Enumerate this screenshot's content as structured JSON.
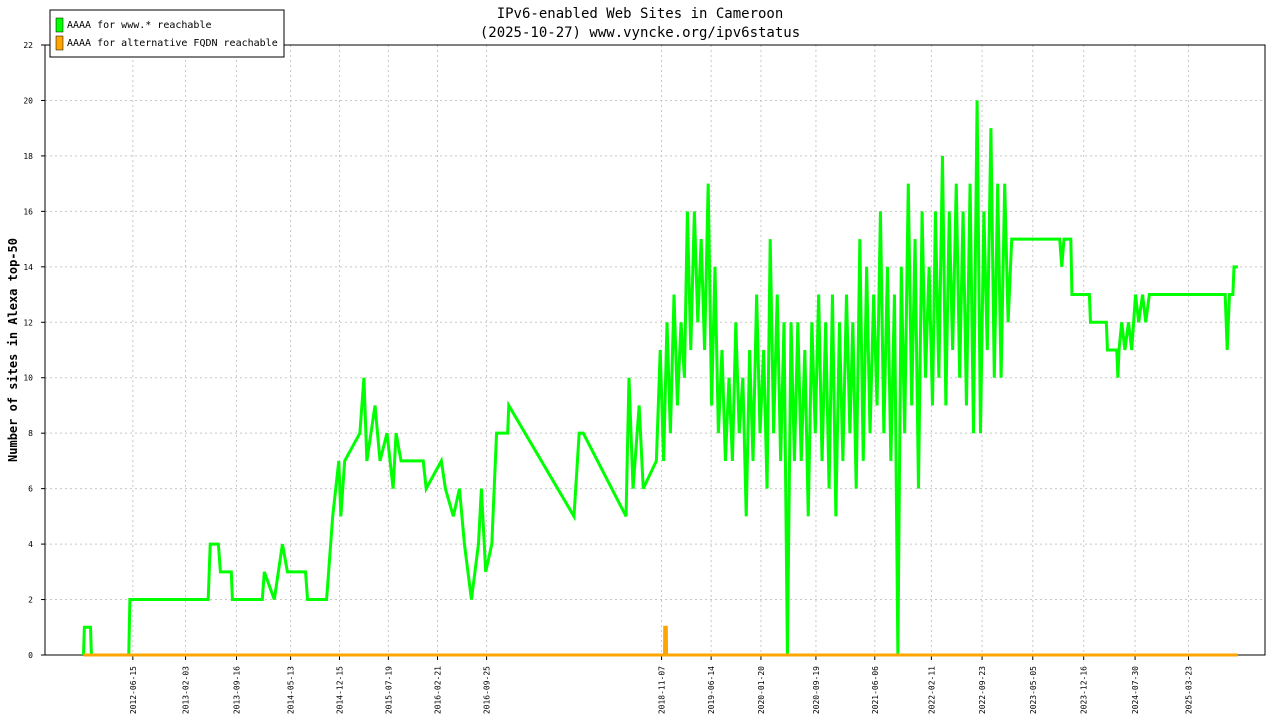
{
  "chart_data": {
    "type": "line",
    "title": "IPv6-enabled Web Sites in Cameroon",
    "subtitle": "(2025-10-27) www.vyncke.org/ipv6status",
    "ylabel": "Number of sites in Alexa top-50",
    "legend": "upper left",
    "grid": true,
    "xlim": [
      "2011-05-24",
      "2026-02-24"
    ],
    "ylim": [
      0,
      22
    ],
    "yticks": [
      0,
      2,
      4,
      6,
      8,
      10,
      12,
      14,
      16,
      18,
      20,
      22
    ],
    "xticks": [
      "2012-06-15",
      "2013-02-03",
      "2013-09-16",
      "2014-05-13",
      "2014-12-15",
      "2015-07-19",
      "2016-02-21",
      "2016-09-25",
      "2018-11-07",
      "2019-06-14",
      "2020-01-20",
      "2020-09-19",
      "2021-06-06",
      "2022-02-11",
      "2022-09-23",
      "2023-05-05",
      "2023-12-16",
      "2024-07-30",
      "2025-03-23"
    ],
    "series": [
      {
        "name": "AAAA for www.* reachable",
        "color": "#00ff00",
        "x": [
          "2011-11-10",
          "2011-11-14",
          "2011-12-11",
          "2011-12-15",
          "2012-05-28",
          "2012-06-02",
          "2013-05-14",
          "2013-05-23",
          "2013-06-28",
          "2013-07-07",
          "2013-08-24",
          "2013-08-29",
          "2014-01-08",
          "2014-01-17",
          "2014-03-02",
          "2014-04-07",
          "2014-04-29",
          "2014-07-18",
          "2014-07-27",
          "2014-10-19",
          "2014-10-28",
          "2014-11-15",
          "2014-12-12",
          "2014-12-21",
          "2015-01-07",
          "2015-03-15",
          "2015-04-02",
          "2015-04-15",
          "2015-05-21",
          "2015-06-12",
          "2015-07-13",
          "2015-08-09",
          "2015-08-22",
          "2015-09-13",
          "2015-12-20",
          "2016-01-02",
          "2016-03-09",
          "2016-03-27",
          "2016-05-01",
          "2016-05-28",
          "2016-06-19",
          "2016-07-20",
          "2016-08-20",
          "2016-09-02",
          "2016-09-21",
          "2016-10-18",
          "2016-11-08",
          "2016-12-27",
          "2017-01-01",
          "2017-10-16",
          "2017-11-08",
          "2017-11-26",
          "2018-06-03",
          "2018-06-16",
          "2018-07-04",
          "2018-07-31",
          "2018-08-18",
          "2018-10-15",
          "2018-11-01",
          "2018-11-16",
          "2018-12-01",
          "2018-12-16",
          "2019-01-01",
          "2019-01-16",
          "2019-02-01",
          "2019-02-16",
          "2019-03-01",
          "2019-03-16",
          "2019-04-01",
          "2019-04-16",
          "2019-05-01",
          "2019-05-16",
          "2019-06-01",
          "2019-06-16",
          "2019-07-01",
          "2019-07-16",
          "2019-08-01",
          "2019-08-16",
          "2019-09-01",
          "2019-09-16",
          "2019-10-01",
          "2019-10-16",
          "2019-11-01",
          "2019-11-16",
          "2019-12-01",
          "2019-12-16",
          "2020-01-01",
          "2020-01-16",
          "2020-02-01",
          "2020-02-16",
          "2020-03-01",
          "2020-03-16",
          "2020-04-01",
          "2020-04-16",
          "2020-05-01",
          "2020-05-16",
          "2020-06-01",
          "2020-06-16",
          "2020-07-01",
          "2020-07-16",
          "2020-08-01",
          "2020-08-16",
          "2020-09-01",
          "2020-09-16",
          "2020-10-01",
          "2020-10-16",
          "2020-11-01",
          "2020-11-16",
          "2020-12-01",
          "2020-12-16",
          "2021-01-01",
          "2021-01-16",
          "2021-02-01",
          "2021-02-16",
          "2021-03-01",
          "2021-03-16",
          "2021-04-01",
          "2021-04-16",
          "2021-05-01",
          "2021-05-16",
          "2021-06-01",
          "2021-06-16",
          "2021-07-01",
          "2021-07-16",
          "2021-08-01",
          "2021-08-16",
          "2021-09-01",
          "2021-09-16",
          "2021-10-01",
          "2021-10-16",
          "2021-11-01",
          "2021-11-16",
          "2021-12-01",
          "2021-12-16",
          "2022-01-01",
          "2022-01-16",
          "2022-02-01",
          "2022-02-16",
          "2022-03-01",
          "2022-03-16",
          "2022-04-01",
          "2022-04-16",
          "2022-05-01",
          "2022-05-16",
          "2022-06-01",
          "2022-06-16",
          "2022-07-01",
          "2022-07-16",
          "2022-08-01",
          "2022-08-16",
          "2022-09-01",
          "2022-09-16",
          "2022-10-01",
          "2022-10-16",
          "2022-11-01",
          "2022-11-16",
          "2022-12-01",
          "2022-12-16",
          "2023-01-01",
          "2023-01-16",
          "2023-02-01",
          "2023-09-01",
          "2023-09-10",
          "2023-09-20",
          "2023-10-20",
          "2023-10-25",
          "2024-01-10",
          "2024-01-15",
          "2024-03-25",
          "2024-03-30",
          "2024-05-10",
          "2024-05-15",
          "2024-05-20",
          "2024-06-01",
          "2024-06-15",
          "2024-07-01",
          "2024-07-15",
          "2024-08-01",
          "2024-08-15",
          "2024-09-01",
          "2024-09-15",
          "2024-10-01",
          "2025-09-01",
          "2025-09-10",
          "2025-09-20",
          "2025-10-05",
          "2025-10-10",
          "2025-10-27"
        ],
        "values": [
          0,
          1,
          1,
          0,
          0,
          2,
          2,
          4,
          4,
          3,
          3,
          2,
          2,
          3,
          2,
          4,
          3,
          3,
          2,
          2,
          3,
          5,
          7,
          5,
          7,
          8,
          10,
          7,
          9,
          7,
          8,
          6,
          8,
          7,
          7,
          6,
          7,
          6,
          5,
          6,
          4,
          2,
          4,
          6,
          3,
          4,
          8,
          8,
          9,
          5,
          8,
          8,
          5,
          10,
          6,
          9,
          6,
          7,
          11,
          7,
          12,
          8,
          13,
          9,
          12,
          10,
          16,
          11,
          16,
          12,
          15,
          11,
          17,
          9,
          14,
          8,
          11,
          7,
          10,
          7,
          12,
          8,
          10,
          5,
          11,
          7,
          13,
          8,
          11,
          6,
          15,
          8,
          13,
          7,
          12,
          0,
          12,
          7,
          12,
          7,
          11,
          5,
          12,
          8,
          13,
          7,
          12,
          6,
          13,
          5,
          12,
          7,
          13,
          8,
          12,
          6,
          15,
          7,
          14,
          8,
          13,
          9,
          16,
          8,
          14,
          7,
          13,
          0,
          14,
          8,
          17,
          9,
          15,
          6,
          16,
          10,
          14,
          9,
          16,
          10,
          18,
          9,
          16,
          11,
          17,
          10,
          16,
          9,
          17,
          8,
          20,
          8,
          16,
          11,
          19,
          10,
          17,
          10,
          17,
          12,
          15,
          15,
          14,
          15,
          15,
          13,
          13,
          12,
          12,
          11,
          11,
          10,
          11,
          12,
          11,
          12,
          11,
          13,
          12,
          13,
          12,
          13,
          13,
          11,
          13,
          13,
          14,
          14
        ]
      },
      {
        "name": "AAAA for alternative FQDN reachable",
        "color": "#ffa500",
        "x": [
          "2011-11-10",
          "2018-11-20",
          "2018-11-21",
          "2018-11-28",
          "2018-11-29",
          "2025-10-27"
        ],
        "values": [
          0,
          0,
          1,
          1,
          0,
          0
        ]
      }
    ]
  }
}
